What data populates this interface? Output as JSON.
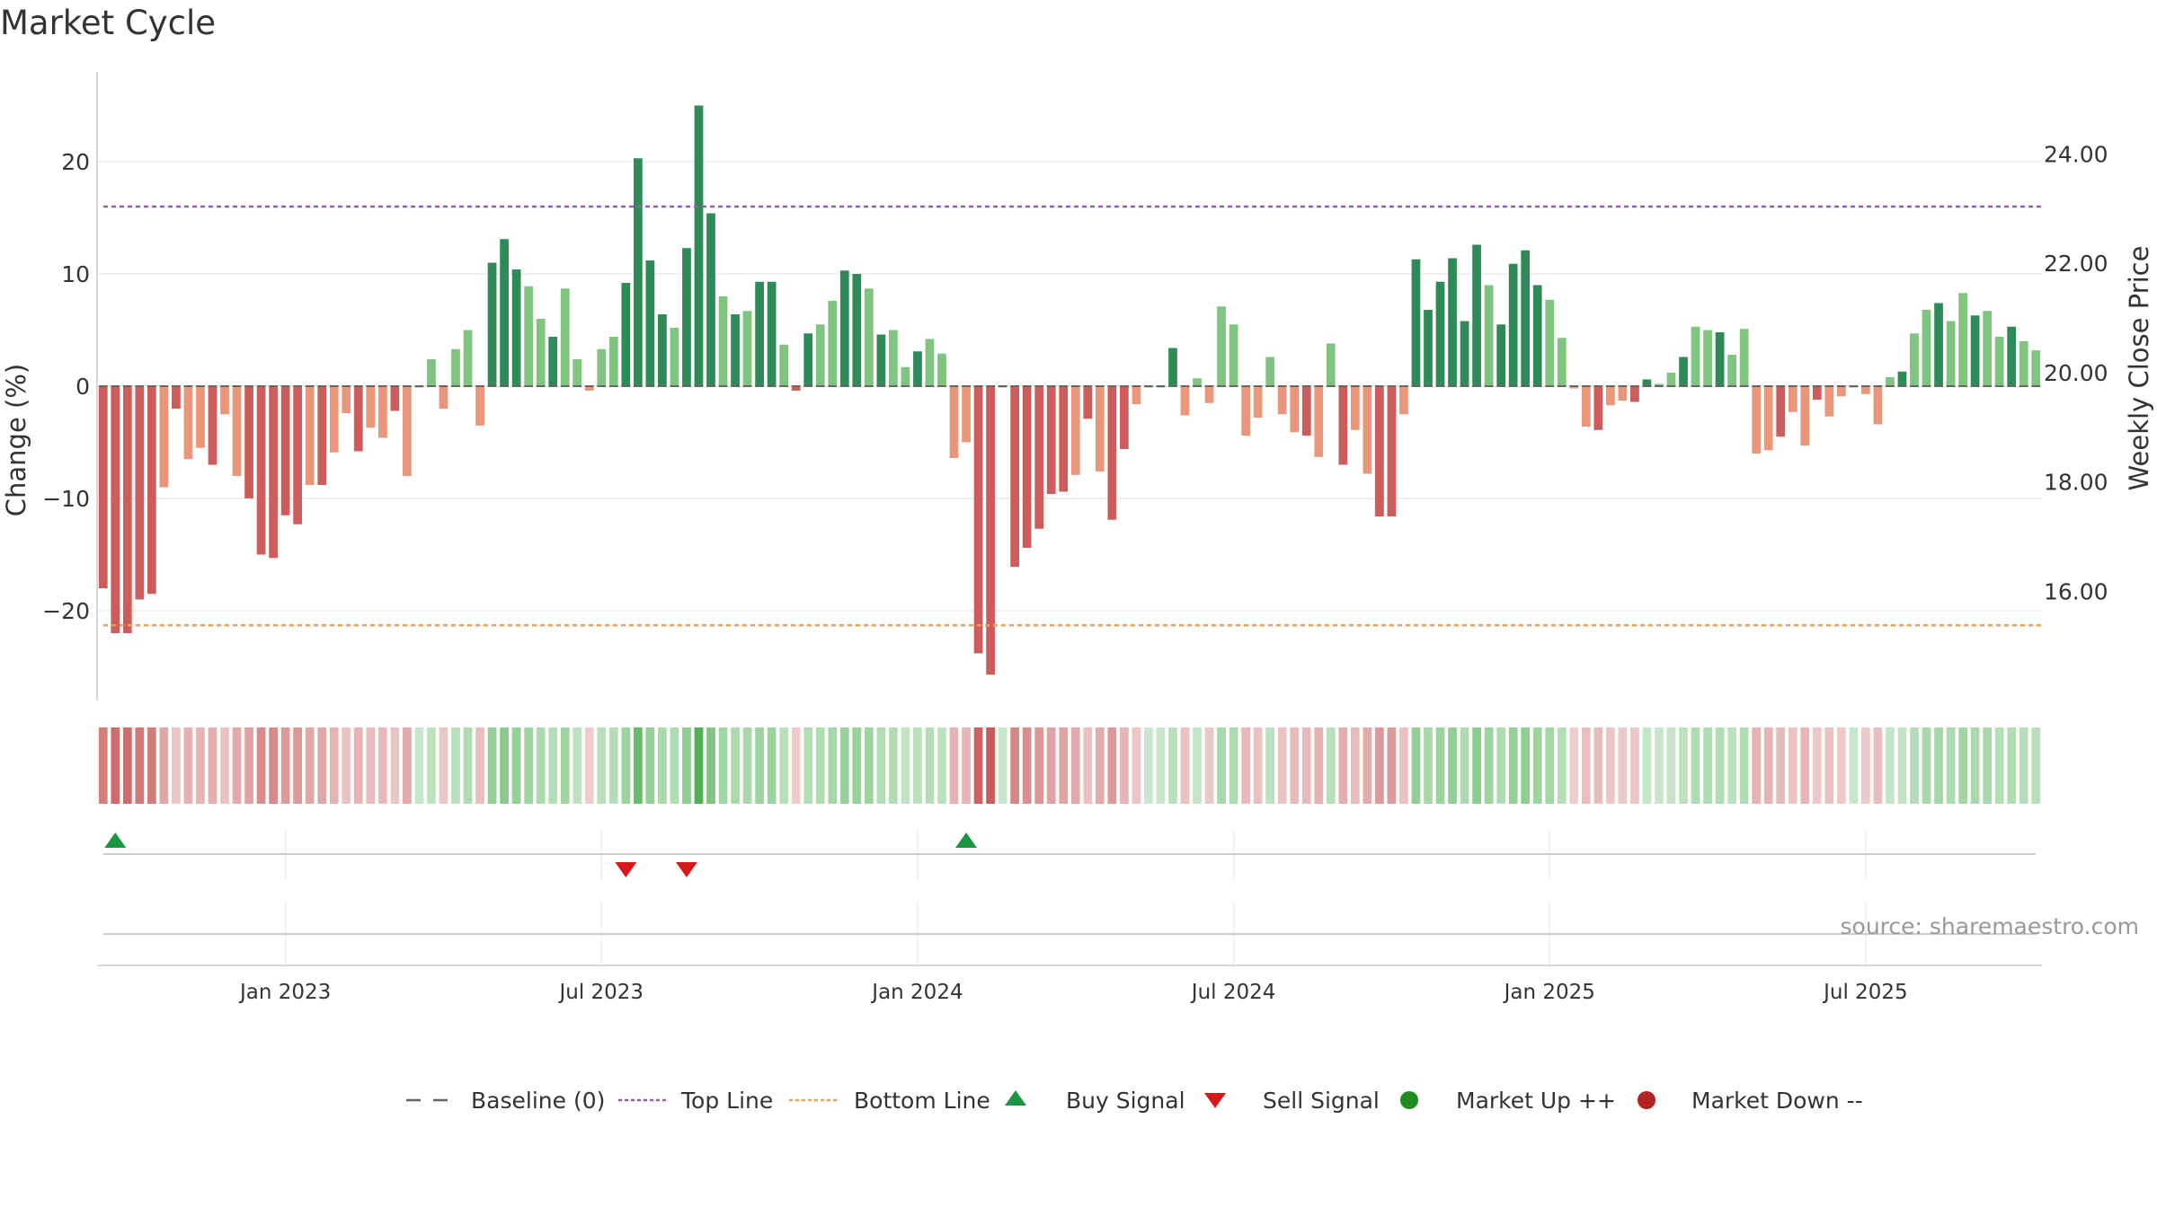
{
  "chart_data": {
    "type": "bar",
    "title": "Market Cycle",
    "ylabel_left": "Change (%)",
    "ylabel_right": "Weekly Close Price",
    "source": "source: sharemaestro.com",
    "y_left": {
      "min": -28,
      "max": 28,
      "ticks": [
        -20,
        -10,
        0,
        10,
        20
      ]
    },
    "y_right": {
      "min": 14.0,
      "max": 25.5,
      "ticks": [
        "16.00",
        "18.00",
        "20.00",
        "22.00",
        "24.00"
      ],
      "tick_values": [
        16,
        18,
        20,
        22,
        24
      ]
    },
    "x_ticks": [
      {
        "label": "Jan 2023",
        "index": 15
      },
      {
        "label": "Jul 2023",
        "index": 41
      },
      {
        "label": "Jan 2024",
        "index": 67
      },
      {
        "label": "Jul 2024",
        "index": 93
      },
      {
        "label": "Jan 2025",
        "index": 119
      },
      {
        "label": "Jul 2025",
        "index": 145
      }
    ],
    "top_line": 16,
    "bottom_line": -21.3,
    "colors": {
      "up_strong": "#2e8b57",
      "up_light": "#7fc47f",
      "down_strong": "#cd5c5c",
      "down_light": "#e9967a",
      "top_line": "#9b59b6",
      "bottom_line": "#f0a050",
      "buy": "#1a9641",
      "sell": "#d7191c",
      "market_up": "#228b22",
      "market_down": "#b22222",
      "baseline": "#666666"
    },
    "weekly_change": [
      -18,
      -22,
      -22,
      -19,
      -18.5,
      -9,
      -2,
      -6.5,
      -5.5,
      -7,
      -2.5,
      -8,
      -10,
      -15,
      -15.3,
      -11.5,
      -12.3,
      -8.8,
      -8.8,
      -5.9,
      -2.4,
      -5.8,
      -3.7,
      -4.6,
      -2.2,
      -8,
      0,
      2.4,
      -2,
      3.3,
      5,
      -3.5,
      11,
      13.1,
      10.4,
      8.9,
      6,
      4.4,
      8.7,
      2.4,
      -0.4,
      3.3,
      4.4,
      9.2,
      20.3,
      11.2,
      6.4,
      5.2,
      12.3,
      25,
      15.4,
      8,
      6.4,
      6.7,
      9.3,
      9.3,
      3.7,
      -0.4,
      4.7,
      5.5,
      7.6,
      10.3,
      10,
      8.7,
      4.6,
      5,
      1.7,
      3.1,
      4.2,
      2.9,
      -6.4,
      -5,
      -23.8,
      -25.7,
      0,
      -16.1,
      -14.4,
      -12.7,
      -9.6,
      -9.4,
      -7.9,
      -2.9,
      -7.6,
      -11.9,
      -5.6,
      -1.6,
      0,
      0,
      3.4,
      -2.6,
      0.7,
      -1.5,
      7.1,
      5.5,
      -4.4,
      -2.8,
      2.6,
      -2.5,
      -4.1,
      -4.4,
      -6.3,
      3.8,
      -7,
      -3.9,
      -7.8,
      -11.6,
      -11.6,
      -2.5,
      11.3,
      6.8,
      9.3,
      11.4,
      5.8,
      12.6,
      9,
      5.5,
      10.9,
      12.1,
      9,
      7.7,
      4.3,
      -0.2,
      -3.6,
      -3.9,
      -1.7,
      -1.3,
      -1.4,
      0.6,
      0.2,
      1.2,
      2.6,
      5.3,
      5,
      4.8,
      2.8,
      5.1,
      -6,
      -5.7,
      -4.5,
      -2.3,
      -5.3,
      -1.2,
      -2.7,
      -0.9,
      0,
      -0.7,
      -3.4,
      0.8,
      1.3,
      4.7,
      6.8,
      7.4,
      5.8,
      8.3,
      6.3,
      6.7,
      4.4,
      5.3,
      4,
      3.2
    ],
    "buy_signals": [
      1,
      71
    ],
    "sell_signals": [
      43,
      48
    ],
    "legend": [
      "Baseline (0)",
      "Top Line",
      "Bottom Line",
      "Buy Signal",
      "Sell Signal",
      "Market Up ++",
      "Market Down --"
    ]
  }
}
